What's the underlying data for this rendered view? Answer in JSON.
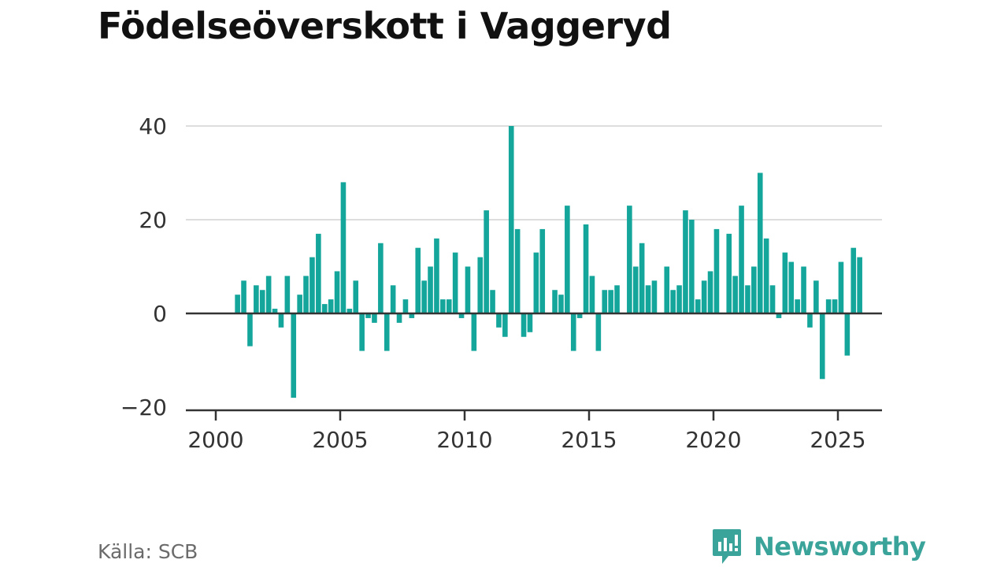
{
  "chart_data": {
    "type": "bar",
    "title": "Födelseöverskott i Vaggeryd",
    "xlabel": "",
    "ylabel": "",
    "frequency": "quarterly",
    "start": "2000-Q4",
    "x_ticks": [
      "2000",
      "2005",
      "2010",
      "2015",
      "2020",
      "2025"
    ],
    "y_ticks": [
      "40",
      "20",
      "0",
      "−20"
    ],
    "xlim": [
      1999.6,
      2026.1
    ],
    "ylim": [
      -20,
      40
    ],
    "grid": true,
    "color": "#14a59b",
    "values": [
      4,
      7,
      -7,
      6,
      5,
      8,
      1,
      -3,
      8,
      -18,
      4,
      8,
      12,
      17,
      2,
      3,
      9,
      28,
      1,
      7,
      -8,
      -1,
      -2,
      15,
      -8,
      6,
      -2,
      3,
      -1,
      14,
      7,
      10,
      16,
      3,
      3,
      13,
      -1,
      10,
      -8,
      12,
      22,
      5,
      -3,
      -5,
      40,
      18,
      -5,
      -4,
      13,
      18,
      0,
      5,
      4,
      23,
      -8,
      -1,
      19,
      8,
      -8,
      5,
      5,
      6,
      0,
      23,
      10,
      15,
      6,
      7,
      0,
      10,
      5,
      6,
      22,
      20,
      3,
      7,
      9,
      18,
      0,
      17,
      8,
      23,
      6,
      10,
      30,
      16,
      6,
      -1,
      13,
      11,
      3,
      10,
      -3,
      7,
      -14,
      3,
      3,
      11,
      -9,
      14,
      12
    ]
  },
  "source": "Källa: SCB",
  "brand": {
    "name": "Newsworthy",
    "icon": "newsworthy-logo-icon",
    "color": "#3aa39a"
  }
}
